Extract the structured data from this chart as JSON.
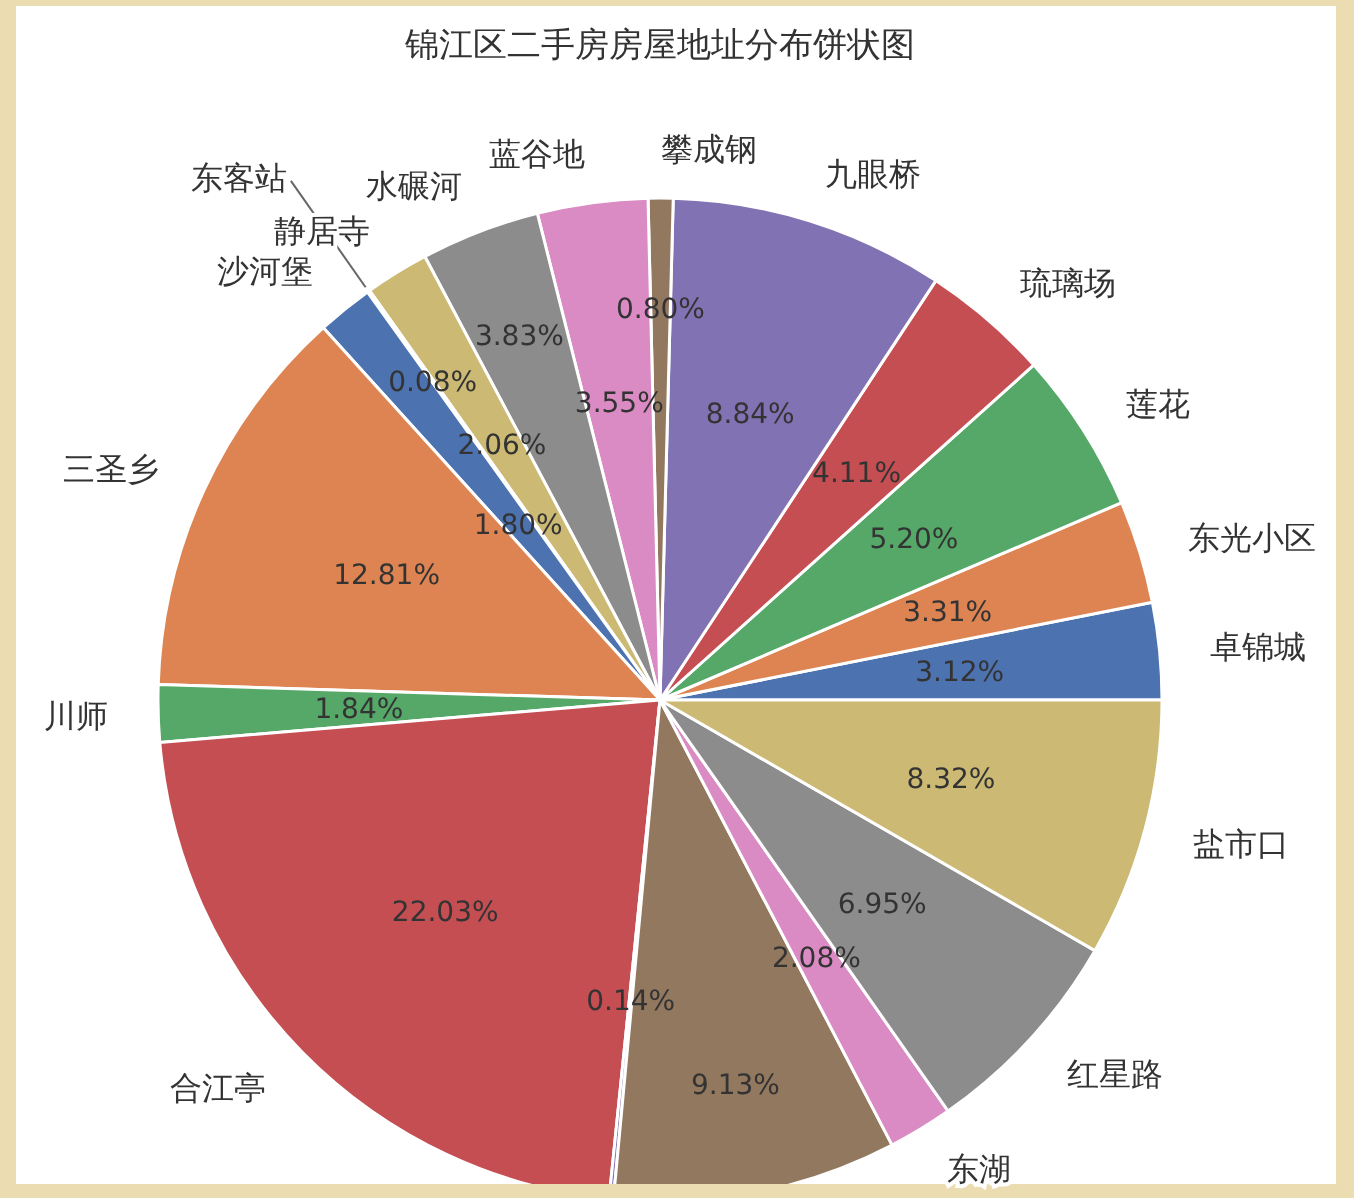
{
  "chart_data": {
    "type": "pie",
    "title": "锦江区二手房房屋地址分布饼状图",
    "categories": [
      "卓锦城",
      "东光小区",
      "莲花",
      "琉璃场",
      "九眼桥",
      "攀成钢",
      "蓝谷地",
      "水碾河",
      "静居寺",
      "东客站",
      "沙河堡",
      "三圣乡",
      "川师",
      "合江亭",
      null,
      null,
      "东湖",
      "红星路",
      "盐市口"
    ],
    "values": [
      3.12,
      3.31,
      5.2,
      4.11,
      8.84,
      0.8,
      3.55,
      3.83,
      2.06,
      0.08,
      1.8,
      12.81,
      1.84,
      22.03,
      0.14,
      9.13,
      2.08,
      6.95,
      8.32
    ],
    "colors": [
      "#4c72b0",
      "#dd8452",
      "#55a868",
      "#c44e52",
      "#8172b3",
      "#937860",
      "#da8bc3",
      "#8c8c8c",
      "#ccb974",
      "#64b5cd",
      "#4c72b0",
      "#dd8452",
      "#55a868",
      "#c44e52",
      "#8172b3",
      "#937860",
      "#da8bc3",
      "#8c8c8c",
      "#ccb974"
    ],
    "value_labels": [
      "3.12%",
      "3.31%",
      "5.20%",
      "4.11%",
      "8.84%",
      "0.80%",
      "3.55%",
      "3.83%",
      "2.06%",
      "0.08%",
      "1.80%",
      "12.81%",
      "1.84%",
      "22.03%",
      "0.14%",
      "9.13%",
      "2.08%",
      "6.95%",
      "8.32%"
    ]
  }
}
